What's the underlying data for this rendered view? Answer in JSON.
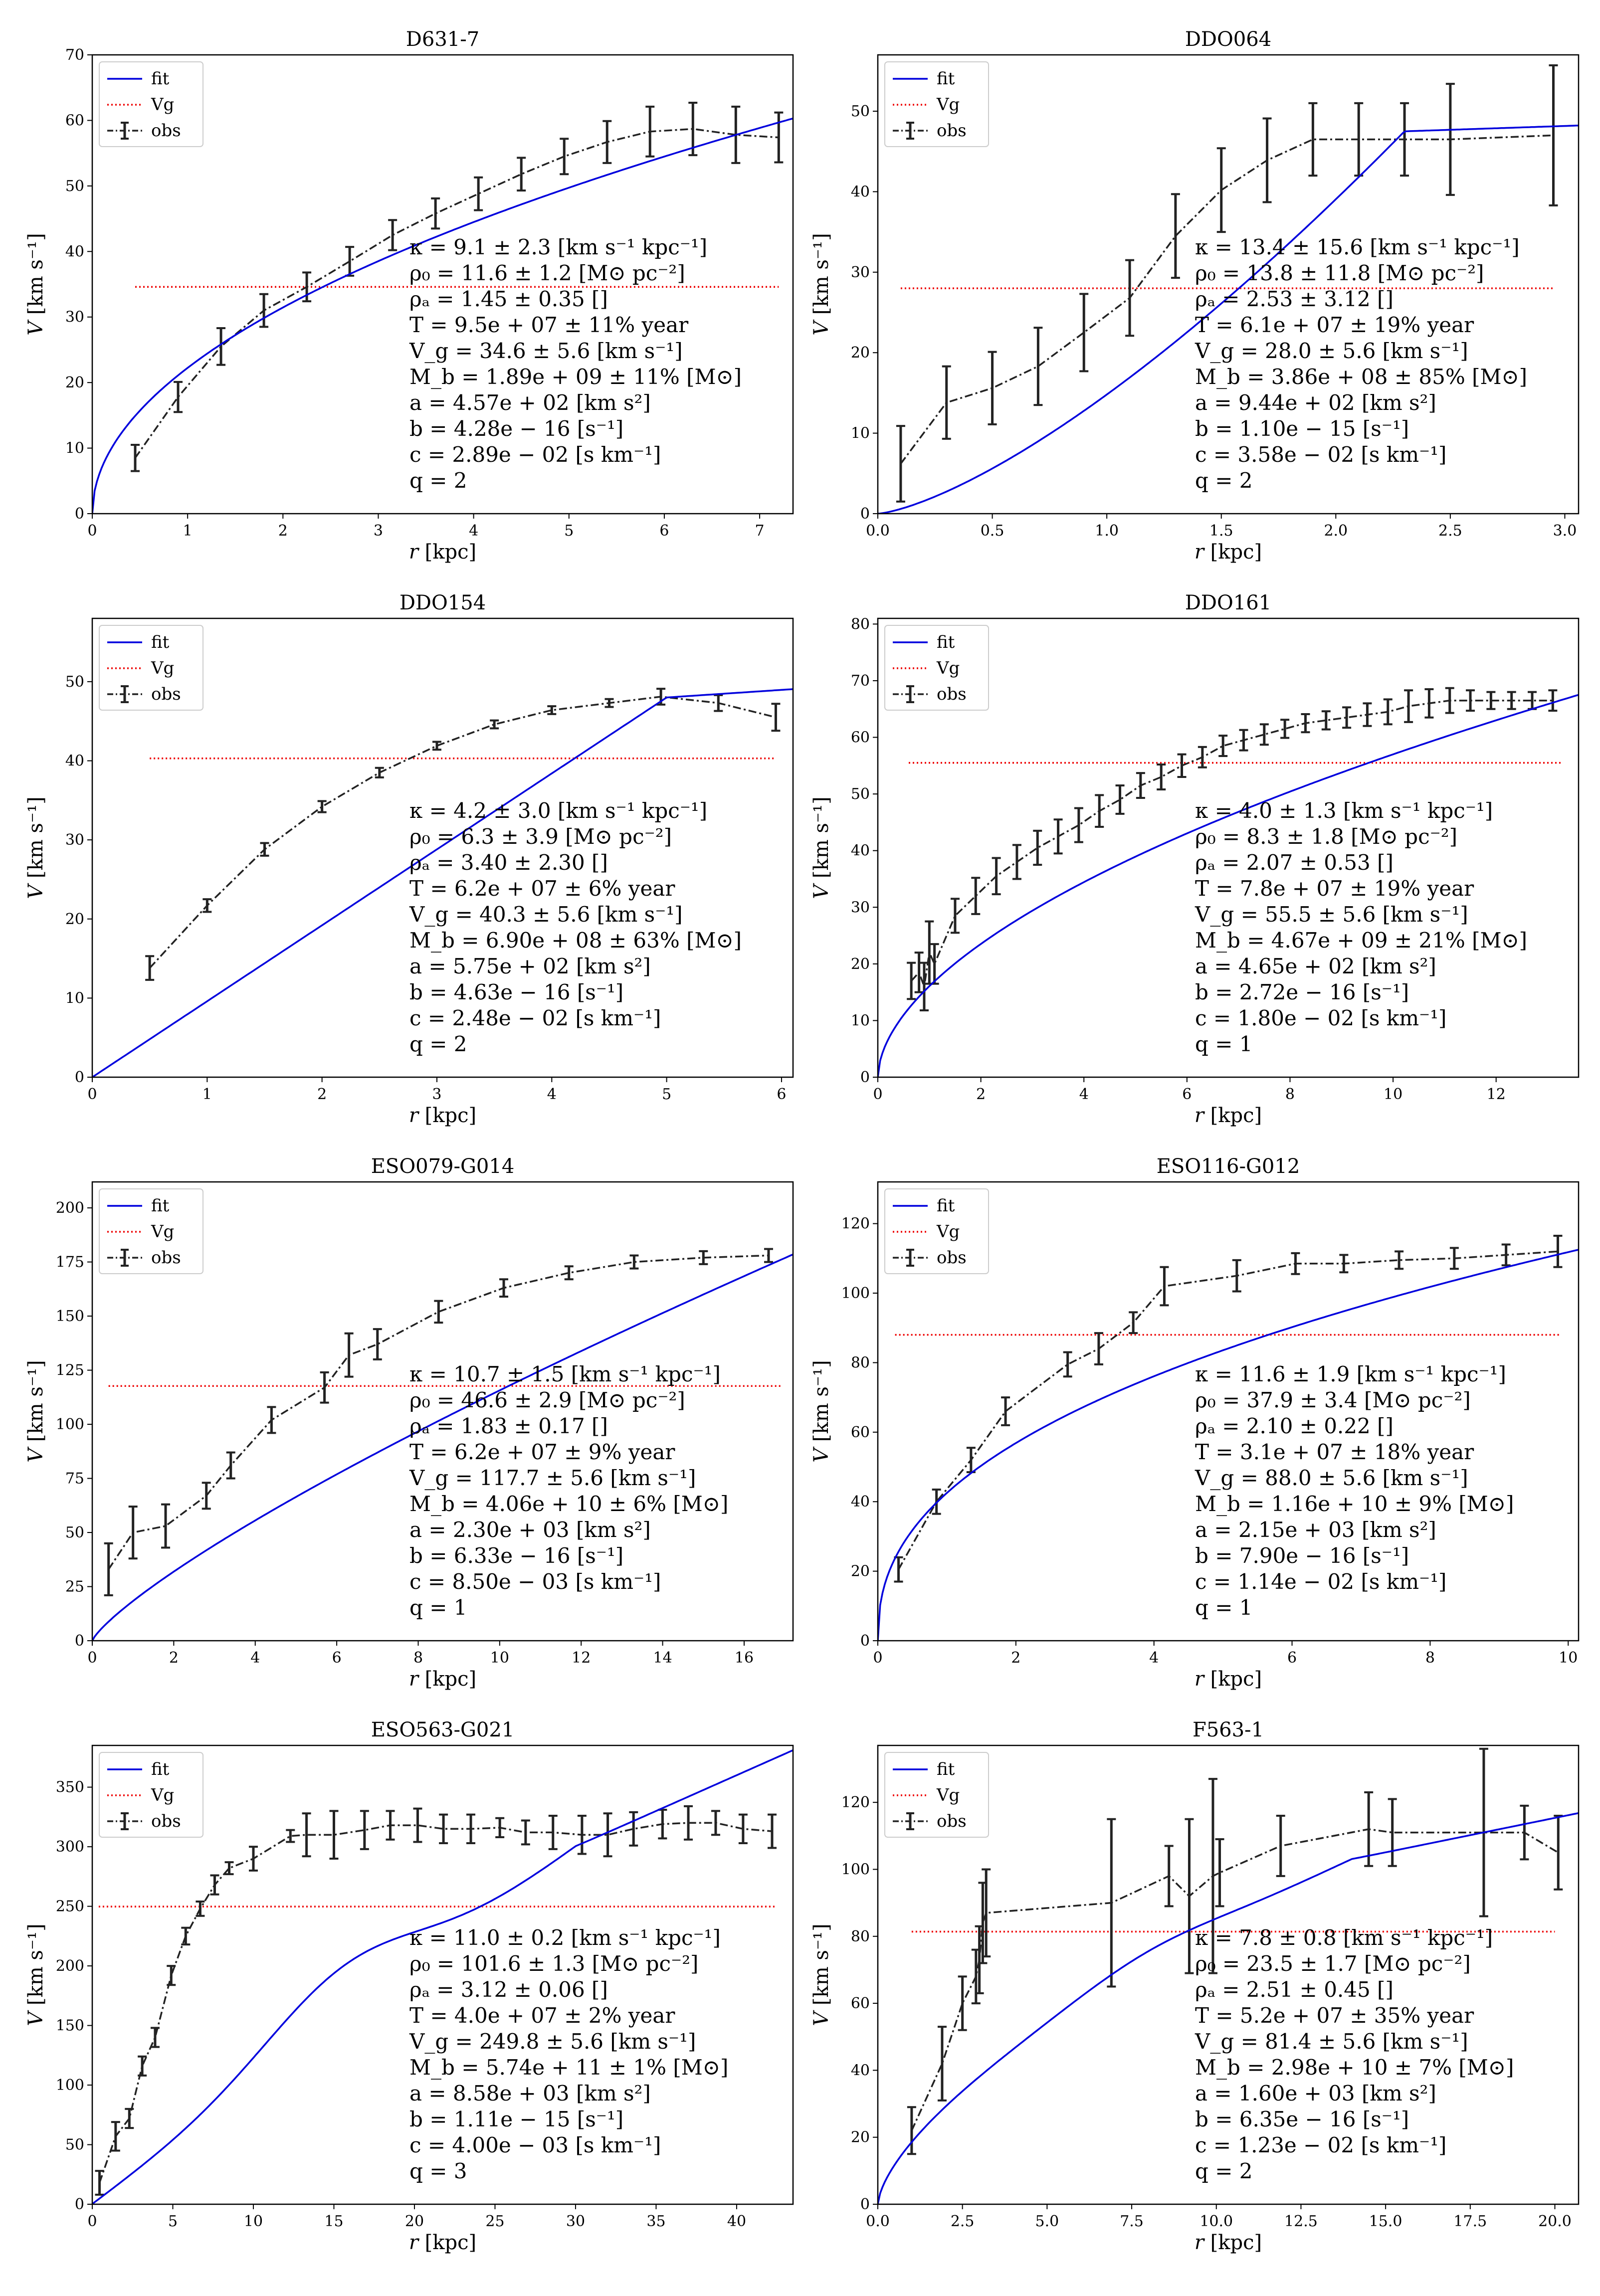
{
  "figure": {
    "title": "Rotation curves (fit, Vg, obs) for eight galaxies"
  },
  "legend": {
    "fit": "fit",
    "vg": "Vg",
    "obs": "obs"
  },
  "axes": {
    "xlabel": "r [kpc]",
    "ylabel": "V [km s⁻¹]"
  },
  "colors": {
    "fit": "#0000dd",
    "vg": "#ee0000",
    "obs": "#222222"
  },
  "chart_data": [
    {
      "type": "line",
      "title": "D631-7",
      "xlim": [
        0,
        7.35
      ],
      "ylim": [
        0,
        70
      ],
      "xticks": [
        0,
        1,
        2,
        3,
        4,
        5,
        6,
        7
      ],
      "xticklabels": [
        "0",
        "1",
        "2",
        "3",
        "4",
        "5",
        "6",
        "7"
      ],
      "yticks": [
        0,
        10,
        20,
        30,
        40,
        50,
        60,
        70
      ],
      "yticklabels": [
        "0",
        "10",
        "20",
        "30",
        "40",
        "50",
        "60",
        "70"
      ],
      "vg": 34.6,
      "vg_x": [
        0.45,
        7.2
      ],
      "fit_params": {
        "vmax": 60.3,
        "rmax": 7.35,
        "shape": 0.5,
        "bumpA": 0,
        "bumpC": 0,
        "bumpW": 1
      },
      "obs": {
        "r": [
          0.45,
          0.9,
          1.35,
          1.8,
          2.25,
          2.7,
          3.15,
          3.6,
          4.05,
          4.5,
          4.95,
          5.4,
          5.85,
          6.3,
          6.75,
          7.2
        ],
        "v": [
          8.5,
          17.8,
          25.5,
          31.0,
          34.6,
          38.5,
          42.5,
          45.8,
          48.8,
          51.8,
          54.5,
          56.7,
          58.3,
          58.7,
          57.8,
          57.4
        ],
        "err": [
          2,
          2.3,
          2.8,
          2.5,
          2.2,
          2.2,
          2.3,
          2.3,
          2.5,
          2.5,
          2.7,
          3.2,
          3.8,
          4,
          4.3,
          3.8
        ]
      },
      "annotations": [
        "κ = 9.1 ± 2.3 [km s⁻¹ kpc⁻¹]",
        "ρ₀ = 11.6 ± 1.2 [M⊙ pc⁻²]",
        "ρₐ = 1.45 ± 0.35 []",
        "T = 9.5e + 07 ± 11% year",
        "V_g = 34.6 ± 5.6 [km s⁻¹]",
        "M_b = 1.89e + 09 ± 11% [M⊙]",
        "a = 4.57e + 02 [km s²]",
        "b = 4.28e − 16 [s⁻¹]",
        "c = 2.89e − 02 [s km⁻¹]",
        "q = 2"
      ]
    },
    {
      "type": "line",
      "title": "DDO064",
      "xlim": [
        0,
        3.06
      ],
      "ylim": [
        0,
        57
      ],
      "xticks": [
        0,
        0.5,
        1,
        1.5,
        2,
        2.5,
        3
      ],
      "xticklabels": [
        "0.0",
        "0.5",
        "1.0",
        "1.5",
        "2.0",
        "2.5",
        "3.0"
      ],
      "yticks": [
        0,
        10,
        20,
        30,
        40,
        50
      ],
      "yticklabels": [
        "0",
        "10",
        "20",
        "30",
        "40",
        "50"
      ],
      "vg": 28.0,
      "vg_x": [
        0.1,
        2.95
      ],
      "fit_params": {
        "vmax": 47.5,
        "rmax": 2.3,
        "shape": 1.4,
        "bumpA": 0,
        "bumpC": 0,
        "bumpW": 1
      },
      "obs": {
        "r": [
          0.1,
          0.3,
          0.5,
          0.7,
          0.9,
          1.1,
          1.3,
          1.5,
          1.7,
          1.9,
          2.1,
          2.3,
          2.5,
          2.95
        ],
        "v": [
          6.2,
          13.8,
          15.6,
          18.3,
          22.5,
          26.8,
          34.5,
          40.2,
          43.9,
          46.5,
          46.5,
          46.5,
          46.5,
          47.0
        ],
        "err": [
          4.7,
          4.5,
          4.5,
          4.8,
          4.8,
          4.7,
          5.2,
          5.2,
          5.2,
          4.5,
          4.5,
          4.5,
          6.9,
          8.7
        ]
      },
      "annotations": [
        "κ = 13.4 ± 15.6 [km s⁻¹ kpc⁻¹]",
        "ρ₀ = 13.8 ± 11.8 [M⊙ pc⁻²]",
        "ρₐ = 2.53 ± 3.12 []",
        "T = 6.1e + 07 ± 19% year",
        "V_g = 28.0 ± 5.6 [km s⁻¹]",
        "M_b = 3.86e + 08 ± 85% [M⊙]",
        "a = 9.44e + 02 [km s²]",
        "b = 1.10e − 15 [s⁻¹]",
        "c = 3.58e − 02 [s km⁻¹]",
        "q = 2"
      ]
    },
    {
      "type": "line",
      "title": "DDO154",
      "xlim": [
        0,
        6.1
      ],
      "ylim": [
        0,
        58
      ],
      "xticks": [
        0,
        1,
        2,
        3,
        4,
        5,
        6
      ],
      "xticklabels": [
        "0",
        "1",
        "2",
        "3",
        "4",
        "5",
        "6"
      ],
      "yticks": [
        0,
        10,
        20,
        30,
        40,
        50
      ],
      "yticklabels": [
        "0",
        "10",
        "20",
        "30",
        "40",
        "50"
      ],
      "vg": 40.3,
      "vg_x": [
        0.5,
        5.95
      ],
      "fit_params": {
        "vmax": 48.0,
        "rmax": 5.0,
        "shape": 1.0,
        "bumpA": 0,
        "bumpC": 0,
        "bumpW": 1
      },
      "obs": {
        "r": [
          0.5,
          1.0,
          1.5,
          2.0,
          2.5,
          3.0,
          3.5,
          4.0,
          4.5,
          4.95,
          5.45,
          5.95
        ],
        "v": [
          13.8,
          21.7,
          28.8,
          34.2,
          38.5,
          41.9,
          44.6,
          46.4,
          47.3,
          48.1,
          47.3,
          45.5
        ],
        "err": [
          1.5,
          0.8,
          0.8,
          0.7,
          0.6,
          0.5,
          0.5,
          0.5,
          0.5,
          1,
          1,
          1.7
        ]
      },
      "annotations": [
        "κ = 4.2 ± 3.0 [km s⁻¹ kpc⁻¹]",
        "ρ₀ = 6.3 ± 3.9 [M⊙ pc⁻²]",
        "ρₐ = 3.40 ± 2.30 []",
        "T = 6.2e + 07 ± 6% year",
        "V_g = 40.3 ± 5.6 [km s⁻¹]",
        "M_b = 6.90e + 08 ± 63% [M⊙]",
        "a = 5.75e + 02 [km s²]",
        "b = 4.63e − 16 [s⁻¹]",
        "c = 2.48e − 02 [s km⁻¹]",
        "q = 2"
      ]
    },
    {
      "type": "line",
      "title": "DDO161",
      "xlim": [
        0,
        13.6
      ],
      "ylim": [
        0,
        81
      ],
      "xticks": [
        0,
        2,
        4,
        6,
        8,
        10,
        12
      ],
      "xticklabels": [
        "0",
        "2",
        "4",
        "6",
        "8",
        "10",
        "12"
      ],
      "yticks": [
        0,
        10,
        20,
        30,
        40,
        50,
        60,
        70,
        80
      ],
      "yticklabels": [
        "0",
        "10",
        "20",
        "30",
        "40",
        "50",
        "60",
        "70",
        "80"
      ],
      "vg": 55.5,
      "vg_x": [
        0.6,
        13.3
      ],
      "fit_params": {
        "vmax": 67.5,
        "rmax": 13.6,
        "shape": 0.55,
        "bumpA": 0,
        "bumpC": 0,
        "bumpW": 1
      },
      "obs": {
        "r": [
          0.65,
          0.8,
          0.9,
          1.0,
          1.1,
          1.5,
          1.9,
          2.3,
          2.7,
          3.1,
          3.5,
          3.9,
          4.3,
          4.7,
          5.1,
          5.5,
          5.9,
          6.3,
          6.7,
          7.1,
          7.5,
          7.9,
          8.3,
          8.7,
          9.1,
          9.5,
          9.9,
          10.3,
          10.7,
          11.1,
          11.5,
          11.9,
          12.3,
          12.7,
          13.1
        ],
        "v": [
          17,
          18.5,
          16,
          22,
          20,
          28.5,
          32,
          35.5,
          38,
          40.5,
          42.5,
          44.5,
          47,
          49,
          51.5,
          53,
          55,
          56.5,
          58.5,
          59.5,
          60.5,
          61.5,
          62.5,
          63,
          63.5,
          64,
          64.5,
          65.5,
          66,
          66.5,
          66.5,
          66.5,
          66.5,
          66.5,
          66.5
        ],
        "err": [
          3.2,
          3.5,
          4.2,
          5.5,
          3.5,
          3,
          3.2,
          3.2,
          3,
          3,
          3,
          3,
          2.8,
          2.5,
          2.2,
          2.2,
          2,
          1.8,
          1.8,
          1.8,
          1.8,
          1.6,
          1.6,
          1.6,
          1.8,
          2,
          2.2,
          2.8,
          2.5,
          2.2,
          1.8,
          1.5,
          1.5,
          1.5,
          1.8
        ]
      },
      "annotations": [
        "κ = 4.0 ± 1.3 [km s⁻¹ kpc⁻¹]",
        "ρ₀ = 8.3 ± 1.8 [M⊙ pc⁻²]",
        "ρₐ = 2.07 ± 0.53 []",
        "T = 7.8e + 07 ± 19% year",
        "V_g = 55.5 ± 5.6 [km s⁻¹]",
        "M_b = 4.67e + 09 ± 21% [M⊙]",
        "a = 4.65e + 02 [km s²]",
        "b = 2.72e − 16 [s⁻¹]",
        "c = 1.80e − 02 [s km⁻¹]",
        "q = 1"
      ]
    },
    {
      "type": "line",
      "title": "ESO079-G014",
      "xlim": [
        0,
        17.2
      ],
      "ylim": [
        0,
        212
      ],
      "xticks": [
        0,
        2,
        4,
        6,
        8,
        10,
        12,
        14,
        16
      ],
      "xticklabels": [
        "0",
        "2",
        "4",
        "6",
        "8",
        "10",
        "12",
        "14",
        "16"
      ],
      "yticks": [
        0,
        25,
        50,
        75,
        100,
        125,
        150,
        175,
        200
      ],
      "yticklabels": [
        "0",
        "25",
        "50",
        "75",
        "100",
        "125",
        "150",
        "175",
        "200"
      ],
      "vg": 117.7,
      "vg_x": [
        0.4,
        16.9
      ],
      "fit_params": {
        "vmax": 178.5,
        "rmax": 17.2,
        "shape": 0.8,
        "bumpA": 0,
        "bumpC": 0,
        "bumpW": 1
      },
      "obs": {
        "r": [
          0.4,
          1.0,
          1.8,
          2.8,
          3.4,
          4.4,
          5.7,
          6.3,
          7.0,
          8.5,
          10.1,
          11.7,
          13.3,
          15.0,
          16.6
        ],
        "v": [
          33,
          50,
          53,
          67,
          81,
          102,
          117,
          132,
          137,
          152,
          163,
          170,
          175,
          177,
          178
        ],
        "err": [
          12,
          12,
          10,
          6,
          6,
          6,
          7,
          10,
          7,
          5,
          4,
          3,
          3,
          3,
          3
        ]
      },
      "annotations": [
        "κ = 10.7 ± 1.5 [km s⁻¹ kpc⁻¹]",
        "ρ₀ = 46.6 ± 2.9 [M⊙ pc⁻²]",
        "ρₐ = 1.83 ± 0.17 []",
        "T = 6.2e + 07 ± 9% year",
        "V_g = 117.7 ± 5.6 [km s⁻¹]",
        "M_b = 4.06e + 10 ± 6% [M⊙]",
        "a = 2.30e + 03 [km s²]",
        "b = 6.33e − 16 [s⁻¹]",
        "c = 8.50e − 03 [s km⁻¹]",
        "q = 1"
      ]
    },
    {
      "type": "line",
      "title": "ESO116-G012",
      "xlim": [
        0,
        10.15
      ],
      "ylim": [
        0,
        132
      ],
      "xticks": [
        0,
        2,
        4,
        6,
        8,
        10
      ],
      "xticklabels": [
        "0",
        "2",
        "4",
        "6",
        "8",
        "10"
      ],
      "yticks": [
        0,
        20,
        40,
        60,
        80,
        100,
        120
      ],
      "yticklabels": [
        "0",
        "20",
        "40",
        "60",
        "80",
        "100",
        "120"
      ],
      "vg": 88.0,
      "vg_x": [
        0.25,
        9.9
      ],
      "fit_params": {
        "vmax": 112.5,
        "rmax": 10.15,
        "shape": 0.42,
        "bumpA": 0,
        "bumpC": 0,
        "bumpW": 1
      },
      "obs": {
        "r": [
          0.3,
          0.85,
          1.35,
          1.85,
          2.75,
          3.2,
          3.7,
          4.15,
          5.2,
          6.05,
          6.75,
          7.55,
          8.35,
          9.1,
          9.85
        ],
        "v": [
          20.5,
          40,
          52,
          66,
          79.5,
          84,
          91.5,
          102,
          105,
          108.5,
          108.5,
          109.5,
          110,
          111,
          112
        ],
        "err": [
          3.5,
          3.5,
          3.5,
          4,
          3.5,
          4.5,
          3,
          5.5,
          4.5,
          3,
          2.5,
          2.5,
          3,
          3,
          4.5
        ]
      },
      "annotations": [
        "κ = 11.6 ± 1.9 [km s⁻¹ kpc⁻¹]",
        "ρ₀ = 37.9 ± 3.4 [M⊙ pc⁻²]",
        "ρₐ = 2.10 ± 0.22 []",
        "T = 3.1e + 07 ± 18% year",
        "V_g = 88.0 ± 5.6 [km s⁻¹]",
        "M_b = 1.16e + 10 ± 9% [M⊙]",
        "a = 2.15e + 03 [km s²]",
        "b = 7.90e − 16 [s⁻¹]",
        "c = 1.14e − 02 [s km⁻¹]",
        "q = 1"
      ]
    },
    {
      "type": "line",
      "title": "ESO563-G021",
      "xlim": [
        0,
        43.5
      ],
      "ylim": [
        0,
        385
      ],
      "xticks": [
        0,
        5,
        10,
        15,
        20,
        25,
        30,
        35,
        40
      ],
      "xticklabels": [
        "0",
        "5",
        "10",
        "15",
        "20",
        "25",
        "30",
        "35",
        "40"
      ],
      "yticks": [
        0,
        50,
        100,
        150,
        200,
        250,
        300,
        350
      ],
      "yticklabels": [
        "0",
        "50",
        "100",
        "150",
        "200",
        "250",
        "300",
        "350"
      ],
      "vg": 249.8,
      "vg_x": [
        0.4,
        42.5
      ],
      "fit_params": {
        "vmax": 300,
        "rmax": 30,
        "shape": 1.0,
        "bumpA": 44,
        "bumpC": 15.5,
        "bumpW": 6.8
      },
      "obs": {
        "r": [
          0.45,
          1.45,
          2.3,
          3.1,
          3.9,
          4.9,
          5.8,
          6.7,
          7.6,
          8.5,
          10.0,
          12.3,
          13.3,
          15.0,
          16.9,
          18.5,
          20.2,
          21.8,
          23.5,
          25.3,
          26.9,
          28.6,
          30.4,
          32.0,
          33.6,
          35.4,
          37.0,
          38.7,
          40.4,
          42.2
        ],
        "v": [
          18,
          57,
          72,
          116,
          140,
          192,
          225,
          248,
          268,
          282,
          290,
          309,
          310,
          310,
          314,
          318,
          318,
          315,
          315,
          316,
          312,
          312,
          310,
          310,
          315,
          319,
          320,
          320,
          315,
          313
        ],
        "err": [
          10,
          12,
          8,
          8,
          8,
          8,
          7,
          6,
          8,
          5,
          10,
          5,
          18,
          20,
          16,
          12,
          14,
          12,
          12,
          8,
          10,
          14,
          16,
          18,
          14,
          12,
          14,
          10,
          12,
          14
        ]
      },
      "annotations": [
        "κ = 11.0 ± 0.2 [km s⁻¹ kpc⁻¹]",
        "ρ₀ = 101.6 ± 1.3 [M⊙ pc⁻²]",
        "ρₐ = 3.12 ± 0.06 []",
        "T = 4.0e + 07 ± 2% year",
        "V_g = 249.8 ± 5.6 [km s⁻¹]",
        "M_b = 5.74e + 11 ± 1% [M⊙]",
        "a = 8.58e + 03 [km s²]",
        "b = 1.11e − 15 [s⁻¹]",
        "c = 4.00e − 03 [s km⁻¹]",
        "q = 3"
      ]
    },
    {
      "type": "line",
      "title": "F563-1",
      "xlim": [
        0,
        20.7
      ],
      "ylim": [
        0,
        137
      ],
      "xticks": [
        0,
        2.5,
        5,
        7.5,
        10,
        12.5,
        15,
        17.5,
        20
      ],
      "xticklabels": [
        "0.0",
        "2.5",
        "5.0",
        "7.5",
        "10.0",
        "12.5",
        "15.0",
        "17.5",
        "20.0"
      ],
      "yticks": [
        0,
        20,
        40,
        60,
        80,
        100,
        120
      ],
      "yticklabels": [
        "0",
        "20",
        "40",
        "60",
        "80",
        "100",
        "120"
      ],
      "vg": 81.4,
      "vg_x": [
        1.0,
        20.0
      ],
      "fit_params": {
        "vmax": 103,
        "rmax": 14,
        "shape": 0.65,
        "bumpA": 4,
        "bumpC": 8,
        "bumpW": 3
      },
      "obs": {
        "r": [
          1.0,
          1.9,
          2.5,
          2.9,
          3.0,
          3.1,
          3.2,
          6.9,
          8.6,
          9.2,
          9.9,
          10.1,
          11.9,
          14.5,
          15.2,
          17.9,
          19.1,
          20.1
        ],
        "v": [
          22,
          42,
          60,
          68,
          73,
          84,
          87,
          90,
          98,
          92,
          98,
          99,
          107,
          112,
          111,
          111,
          111,
          105
        ],
        "err": [
          7,
          11,
          8,
          8,
          10,
          12,
          13,
          25,
          9,
          23,
          29,
          10,
          9,
          11,
          10,
          25,
          8,
          11
        ]
      },
      "annotations": [
        "κ = 7.8 ± 0.8 [km s⁻¹ kpc⁻¹]",
        "ρ₀ = 23.5 ± 1.7 [M⊙ pc⁻²]",
        "ρₐ = 2.51 ± 0.45 []",
        "T = 5.2e + 07 ± 35% year",
        "V_g = 81.4 ± 5.6 [km s⁻¹]",
        "M_b = 2.98e + 10 ± 7% [M⊙]",
        "a = 1.60e + 03 [km s²]",
        "b = 6.35e − 16 [s⁻¹]",
        "c = 1.23e − 02 [s km⁻¹]",
        "q = 2"
      ]
    }
  ]
}
